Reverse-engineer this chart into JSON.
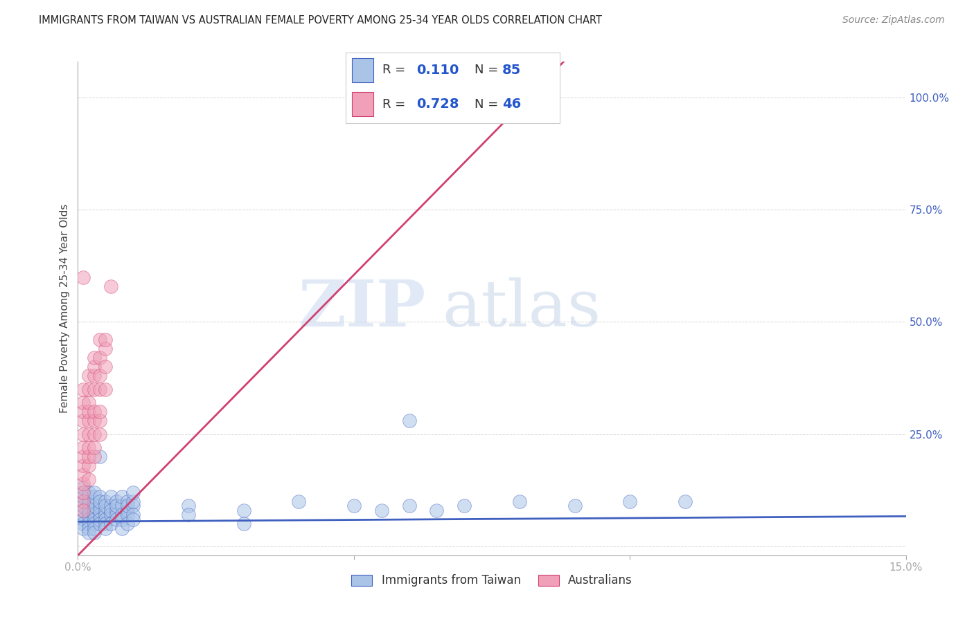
{
  "title": "IMMIGRANTS FROM TAIWAN VS AUSTRALIAN FEMALE POVERTY AMONG 25-34 YEAR OLDS CORRELATION CHART",
  "source": "Source: ZipAtlas.com",
  "ylabel": "Female Poverty Among 25-34 Year Olds",
  "xlim": [
    0.0,
    0.15
  ],
  "ylim": [
    -0.02,
    1.08
  ],
  "yticks_right": [
    0.0,
    0.25,
    0.5,
    0.75,
    1.0
  ],
  "taiwan_color": "#aac4e8",
  "australian_color": "#f0a0b8",
  "taiwan_line_color": "#4060c0",
  "australian_line_color": "#d04070",
  "taiwan_R": 0.11,
  "taiwan_N": 85,
  "australian_R": 0.728,
  "australian_N": 46,
  "legend_text_color": "#333333",
  "legend_value_color": "#2255cc",
  "watermark_zip": "ZIP",
  "watermark_atlas": "atlas",
  "background_color": "#ffffff",
  "grid_color": "#cccccc",
  "taiwan_line_slope": 0.08,
  "taiwan_line_intercept": 0.055,
  "australian_line_slope": 12.5,
  "australian_line_intercept": -0.02,
  "taiwan_scatter": [
    [
      0.001,
      0.1
    ],
    [
      0.001,
      0.08
    ],
    [
      0.001,
      0.12
    ],
    [
      0.001,
      0.07
    ],
    [
      0.001,
      0.09
    ],
    [
      0.001,
      0.11
    ],
    [
      0.001,
      0.06
    ],
    [
      0.001,
      0.05
    ],
    [
      0.001,
      0.13
    ],
    [
      0.001,
      0.04
    ],
    [
      0.002,
      0.09
    ],
    [
      0.002,
      0.11
    ],
    [
      0.002,
      0.07
    ],
    [
      0.002,
      0.08
    ],
    [
      0.002,
      0.1
    ],
    [
      0.002,
      0.06
    ],
    [
      0.002,
      0.05
    ],
    [
      0.002,
      0.12
    ],
    [
      0.002,
      0.04
    ],
    [
      0.002,
      0.03
    ],
    [
      0.003,
      0.08
    ],
    [
      0.003,
      0.1
    ],
    [
      0.003,
      0.07
    ],
    [
      0.003,
      0.09
    ],
    [
      0.003,
      0.06
    ],
    [
      0.003,
      0.11
    ],
    [
      0.003,
      0.05
    ],
    [
      0.003,
      0.04
    ],
    [
      0.003,
      0.12
    ],
    [
      0.003,
      0.03
    ],
    [
      0.004,
      0.09
    ],
    [
      0.004,
      0.07
    ],
    [
      0.004,
      0.11
    ],
    [
      0.004,
      0.08
    ],
    [
      0.004,
      0.06
    ],
    [
      0.004,
      0.1
    ],
    [
      0.004,
      0.05
    ],
    [
      0.004,
      0.2
    ],
    [
      0.005,
      0.08
    ],
    [
      0.005,
      0.1
    ],
    [
      0.005,
      0.07
    ],
    [
      0.005,
      0.09
    ],
    [
      0.005,
      0.06
    ],
    [
      0.005,
      0.05
    ],
    [
      0.005,
      0.04
    ],
    [
      0.006,
      0.09
    ],
    [
      0.006,
      0.07
    ],
    [
      0.006,
      0.11
    ],
    [
      0.006,
      0.08
    ],
    [
      0.006,
      0.05
    ],
    [
      0.007,
      0.08
    ],
    [
      0.007,
      0.1
    ],
    [
      0.007,
      0.07
    ],
    [
      0.007,
      0.09
    ],
    [
      0.007,
      0.06
    ],
    [
      0.008,
      0.09
    ],
    [
      0.008,
      0.07
    ],
    [
      0.008,
      0.11
    ],
    [
      0.008,
      0.06
    ],
    [
      0.008,
      0.04
    ],
    [
      0.009,
      0.08
    ],
    [
      0.009,
      0.1
    ],
    [
      0.009,
      0.07
    ],
    [
      0.009,
      0.05
    ],
    [
      0.009,
      0.09
    ],
    [
      0.01,
      0.09
    ],
    [
      0.01,
      0.07
    ],
    [
      0.01,
      0.1
    ],
    [
      0.01,
      0.06
    ],
    [
      0.01,
      0.12
    ],
    [
      0.02,
      0.09
    ],
    [
      0.02,
      0.07
    ],
    [
      0.03,
      0.08
    ],
    [
      0.03,
      0.05
    ],
    [
      0.04,
      0.1
    ],
    [
      0.05,
      0.09
    ],
    [
      0.055,
      0.08
    ],
    [
      0.06,
      0.09
    ],
    [
      0.065,
      0.08
    ],
    [
      0.07,
      0.09
    ],
    [
      0.08,
      0.1
    ],
    [
      0.09,
      0.09
    ],
    [
      0.1,
      0.1
    ],
    [
      0.11,
      0.1
    ],
    [
      0.06,
      0.28
    ]
  ],
  "australian_scatter": [
    [
      0.001,
      0.1
    ],
    [
      0.001,
      0.12
    ],
    [
      0.001,
      0.14
    ],
    [
      0.001,
      0.16
    ],
    [
      0.001,
      0.18
    ],
    [
      0.001,
      0.2
    ],
    [
      0.001,
      0.22
    ],
    [
      0.001,
      0.25
    ],
    [
      0.001,
      0.28
    ],
    [
      0.001,
      0.3
    ],
    [
      0.001,
      0.32
    ],
    [
      0.001,
      0.35
    ],
    [
      0.002,
      0.15
    ],
    [
      0.002,
      0.18
    ],
    [
      0.002,
      0.2
    ],
    [
      0.002,
      0.22
    ],
    [
      0.002,
      0.25
    ],
    [
      0.002,
      0.28
    ],
    [
      0.002,
      0.3
    ],
    [
      0.002,
      0.32
    ],
    [
      0.002,
      0.35
    ],
    [
      0.002,
      0.38
    ],
    [
      0.003,
      0.2
    ],
    [
      0.003,
      0.22
    ],
    [
      0.003,
      0.25
    ],
    [
      0.003,
      0.28
    ],
    [
      0.003,
      0.3
    ],
    [
      0.003,
      0.35
    ],
    [
      0.003,
      0.38
    ],
    [
      0.003,
      0.4
    ],
    [
      0.003,
      0.42
    ],
    [
      0.004,
      0.25
    ],
    [
      0.004,
      0.28
    ],
    [
      0.004,
      0.3
    ],
    [
      0.004,
      0.35
    ],
    [
      0.004,
      0.38
    ],
    [
      0.004,
      0.42
    ],
    [
      0.004,
      0.46
    ],
    [
      0.005,
      0.35
    ],
    [
      0.005,
      0.4
    ],
    [
      0.005,
      0.44
    ],
    [
      0.005,
      0.46
    ],
    [
      0.006,
      0.58
    ],
    [
      0.001,
      0.6
    ],
    [
      0.06,
      1.0
    ],
    [
      0.001,
      0.08
    ]
  ]
}
